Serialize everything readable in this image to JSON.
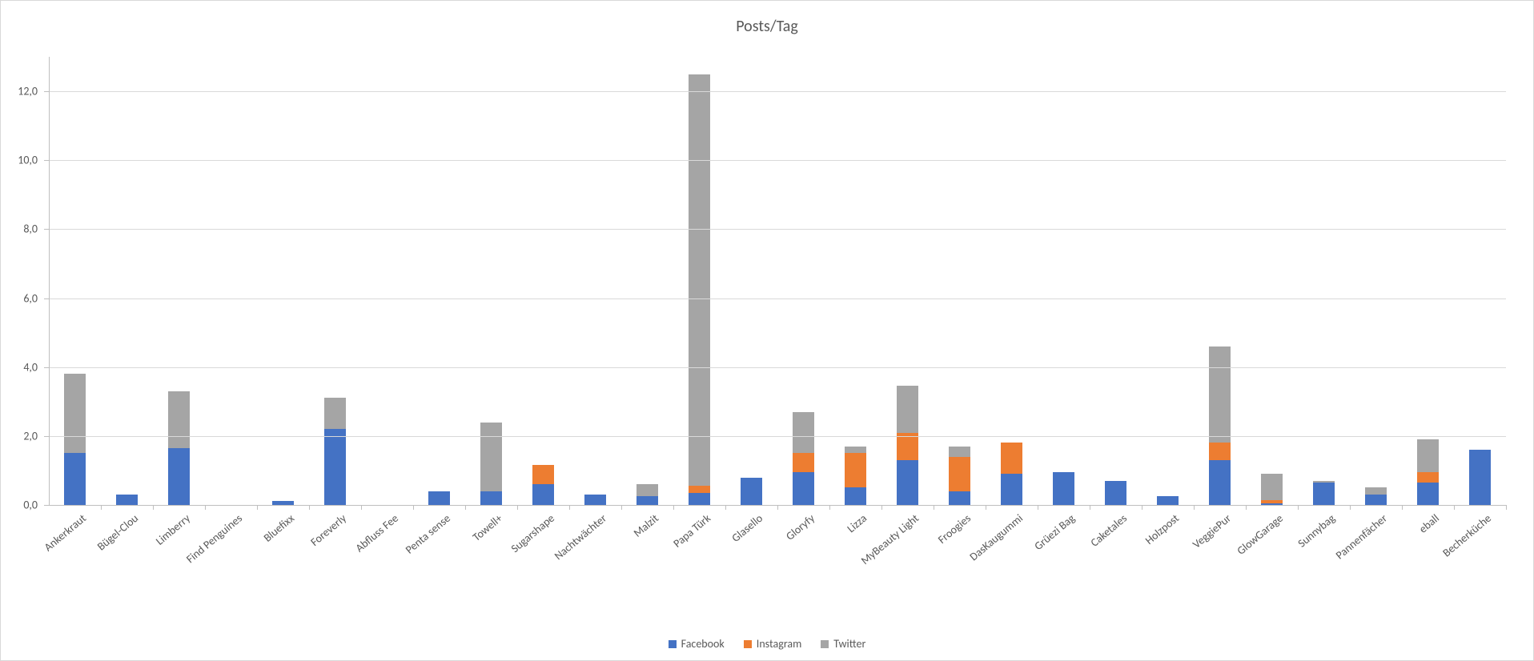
{
  "chart": {
    "type": "stacked-bar",
    "title": "Posts/Tag",
    "title_fontsize": 20,
    "background_color": "#ffffff",
    "border_color": "#d9d9d9",
    "grid_color": "#d9d9d9",
    "axis_color": "#bfbfbf",
    "label_color": "#595959",
    "label_fontsize": 14,
    "ylim": [
      0,
      13
    ],
    "ymax_visible": 13,
    "ytick_step": 2.0,
    "yticks": [
      "0,0",
      "2,0",
      "4,0",
      "6,0",
      "8,0",
      "10,0",
      "12,0"
    ],
    "bar_width_ratio": 0.42,
    "x_label_rotation_deg": -40,
    "series": [
      {
        "name": "Facebook",
        "color": "#4472c4"
      },
      {
        "name": "Instagram",
        "color": "#ed7d31"
      },
      {
        "name": "Twitter",
        "color": "#a5a5a5"
      }
    ],
    "categories": [
      "Ankerkraut",
      "Bügel-Clou",
      "Limberry",
      "Find Penguines",
      "Bluefixx",
      "Foreverly",
      "Abfluss Fee",
      "Penta sense",
      "Towell+",
      "Sugarshape",
      "Nachtwächter",
      "Malzit",
      "Papa Türk",
      "Glasello",
      "Gloryfy",
      "Lizza",
      "MyBeauty Light",
      "Froogies",
      "DasKaugummi",
      "Grüezi Bag",
      "Caketales",
      "Holzpost",
      "VeggiePur",
      "GlowGarage",
      "Sunnybag",
      "Pannenfächer",
      "eball",
      "Becherküche"
    ],
    "data": {
      "Facebook": [
        1.5,
        0.3,
        1.65,
        0.0,
        0.12,
        2.2,
        0.0,
        0.4,
        0.4,
        0.6,
        0.3,
        0.25,
        0.35,
        0.8,
        0.95,
        0.5,
        1.3,
        0.4,
        0.9,
        0.95,
        0.7,
        0.25,
        1.3,
        0.05,
        0.65,
        0.3,
        0.65,
        1.6
      ],
      "Instagram": [
        0.0,
        0.0,
        0.0,
        0.0,
        0.0,
        0.0,
        0.0,
        0.0,
        0.0,
        0.55,
        0.0,
        0.0,
        0.2,
        0.0,
        0.55,
        1.0,
        0.8,
        1.0,
        0.9,
        0.0,
        0.0,
        0.0,
        0.5,
        0.1,
        0.0,
        0.0,
        0.3,
        0.0
      ],
      "Twitter": [
        2.3,
        0.0,
        1.65,
        0.0,
        0.0,
        0.9,
        0.0,
        0.0,
        2.0,
        0.0,
        0.0,
        0.35,
        11.95,
        0.0,
        1.2,
        0.2,
        1.35,
        0.3,
        0.0,
        0.0,
        0.0,
        0.0,
        2.8,
        0.75,
        0.05,
        0.2,
        0.95,
        0.0
      ]
    },
    "legend": {
      "position": "bottom",
      "items": [
        "Facebook",
        "Instagram",
        "Twitter"
      ]
    }
  }
}
